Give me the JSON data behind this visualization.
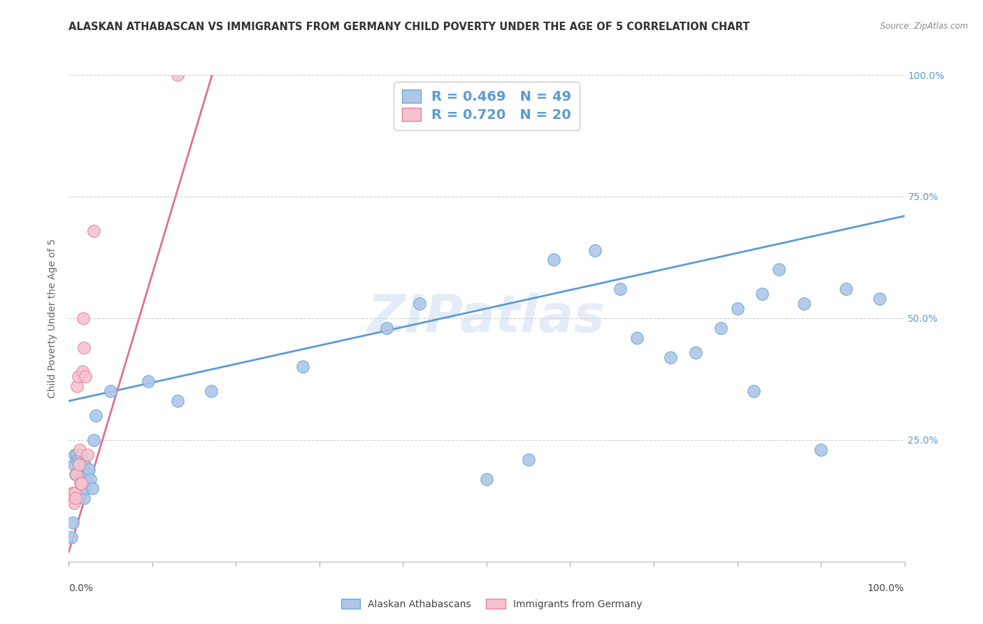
{
  "title": "ALASKAN ATHABASCAN VS IMMIGRANTS FROM GERMANY CHILD POVERTY UNDER THE AGE OF 5 CORRELATION CHART",
  "source": "Source: ZipAtlas.com",
  "ylabel": "Child Poverty Under the Age of 5",
  "watermark": "ZIPatlas",
  "blue_R": 0.469,
  "blue_N": 49,
  "pink_R": 0.72,
  "pink_N": 20,
  "blue_label": "Alaskan Athabascans",
  "pink_label": "Immigrants from Germany",
  "xlim": [
    0,
    1
  ],
  "ylim": [
    0,
    1
  ],
  "yticks": [
    0.0,
    0.25,
    0.5,
    0.75,
    1.0
  ],
  "yticklabels": [
    "",
    "25.0%",
    "50.0%",
    "75.0%",
    "100.0%"
  ],
  "blue_x": [
    0.003,
    0.005,
    0.006,
    0.007,
    0.008,
    0.009,
    0.01,
    0.011,
    0.012,
    0.013,
    0.014,
    0.015,
    0.015,
    0.016,
    0.017,
    0.018,
    0.018,
    0.019,
    0.02,
    0.022,
    0.024,
    0.026,
    0.028,
    0.03,
    0.032,
    0.05,
    0.095,
    0.13,
    0.17,
    0.28,
    0.38,
    0.42,
    0.5,
    0.55,
    0.58,
    0.63,
    0.66,
    0.68,
    0.72,
    0.75,
    0.78,
    0.8,
    0.82,
    0.83,
    0.85,
    0.88,
    0.9,
    0.93,
    0.97
  ],
  "blue_y": [
    0.05,
    0.08,
    0.2,
    0.22,
    0.18,
    0.21,
    0.22,
    0.21,
    0.2,
    0.19,
    0.17,
    0.22,
    0.2,
    0.17,
    0.2,
    0.13,
    0.16,
    0.2,
    0.15,
    0.18,
    0.19,
    0.17,
    0.15,
    0.25,
    0.3,
    0.35,
    0.37,
    0.33,
    0.35,
    0.4,
    0.48,
    0.53,
    0.17,
    0.21,
    0.62,
    0.64,
    0.56,
    0.46,
    0.42,
    0.43,
    0.48,
    0.52,
    0.35,
    0.55,
    0.6,
    0.53,
    0.23,
    0.56,
    0.54
  ],
  "pink_x": [
    0.003,
    0.004,
    0.005,
    0.006,
    0.007,
    0.008,
    0.009,
    0.01,
    0.011,
    0.012,
    0.013,
    0.014,
    0.015,
    0.016,
    0.017,
    0.018,
    0.02,
    0.022,
    0.03,
    0.13
  ],
  "pink_y": [
    0.13,
    0.14,
    0.14,
    0.12,
    0.14,
    0.13,
    0.18,
    0.36,
    0.38,
    0.2,
    0.23,
    0.16,
    0.16,
    0.39,
    0.5,
    0.44,
    0.38,
    0.22,
    0.68,
    1.0
  ],
  "blue_line_x": [
    0.0,
    1.0
  ],
  "blue_line_y": [
    0.33,
    0.71
  ],
  "pink_line_x": [
    0.0,
    0.175
  ],
  "pink_line_y": [
    0.02,
    1.02
  ],
  "blue_dot_color": "#aec6e8",
  "blue_edge_color": "#6aaad4",
  "pink_dot_color": "#f5c2cf",
  "pink_edge_color": "#e8849a",
  "blue_line_color": "#5b9bd5",
  "pink_line_color": "#e07090",
  "legend_text_color": "#5b9bd5",
  "grid_color": "#d0d0d0",
  "background_color": "#ffffff",
  "title_fontsize": 10.5,
  "label_fontsize": 10,
  "tick_fontsize": 10,
  "legend_fontsize": 14
}
